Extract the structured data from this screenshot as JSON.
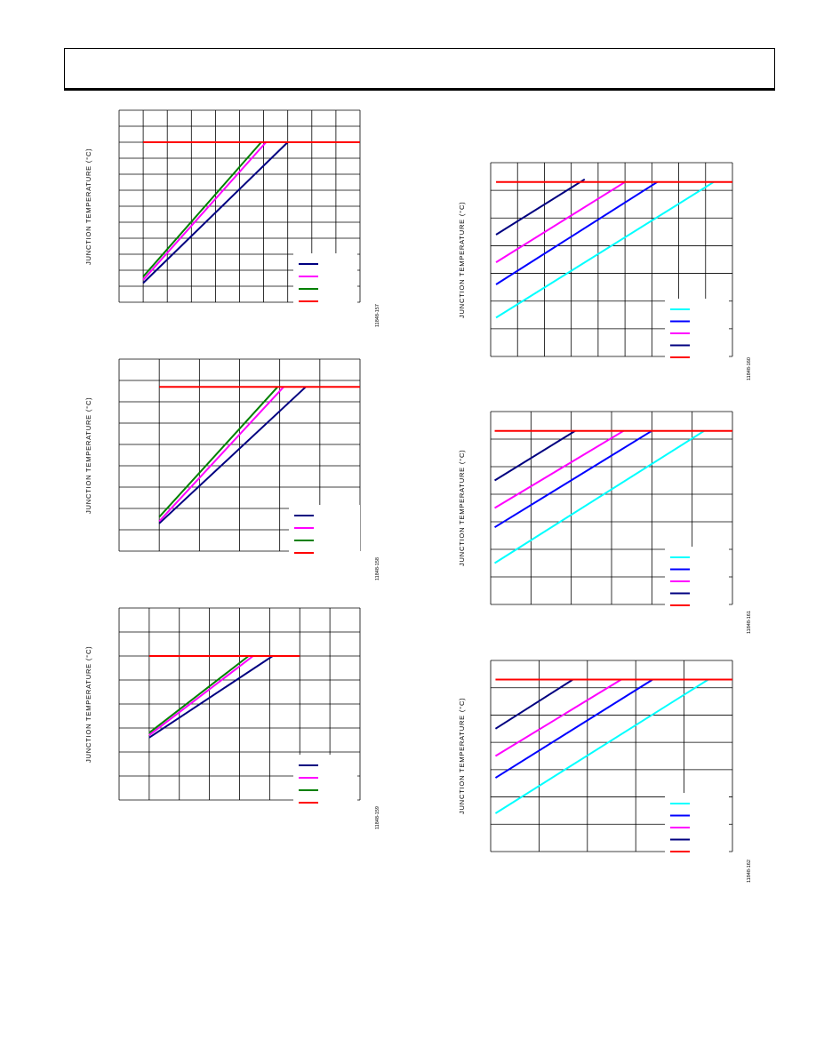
{
  "page": {
    "header": ""
  },
  "chart_data": [
    {
      "type": "line",
      "id": "fig1",
      "figure_id": "11848-157",
      "ylabel": "JUNCTION TEMPERATURE (°C)",
      "xlim": [
        0,
        10
      ],
      "ylim": [
        0,
        12
      ],
      "xgrid": 10,
      "ygrid": 12,
      "series": [
        {
          "color": "#000080",
          "x": [
            1,
            7.0
          ],
          "y": [
            1.2,
            10.0
          ]
        },
        {
          "color": "#ff00ff",
          "x": [
            1,
            6.1
          ],
          "y": [
            1.4,
            10.0
          ]
        },
        {
          "color": "#008000",
          "x": [
            1,
            5.9
          ],
          "y": [
            1.6,
            10.0
          ]
        },
        {
          "color": "#ff0000",
          "x": [
            1,
            10
          ],
          "y": [
            10.0,
            10.0
          ]
        }
      ],
      "legend_colors": [
        "#000080",
        "#ff00ff",
        "#008000",
        "#ff0000"
      ]
    },
    {
      "type": "line",
      "id": "fig2",
      "figure_id": "11848-158",
      "ylabel": "JUNCTION TEMPERATURE (°C)",
      "xlim": [
        0,
        6
      ],
      "ylim": [
        0,
        9
      ],
      "xgrid": 6,
      "ygrid": 9,
      "series": [
        {
          "color": "#000080",
          "x": [
            1,
            4.65
          ],
          "y": [
            1.3,
            7.7
          ]
        },
        {
          "color": "#ff00ff",
          "x": [
            1,
            4.1
          ],
          "y": [
            1.4,
            7.7
          ]
        },
        {
          "color": "#008000",
          "x": [
            1,
            3.95
          ],
          "y": [
            1.6,
            7.7
          ]
        },
        {
          "color": "#ff0000",
          "x": [
            1,
            6
          ],
          "y": [
            7.7,
            7.7
          ]
        }
      ],
      "legend_colors": [
        "#000080",
        "#ff00ff",
        "#008000",
        "#ff0000"
      ]
    },
    {
      "type": "line",
      "id": "fig3",
      "figure_id": "11848-159",
      "ylabel": "JUNCTION TEMPERATURE (°C)",
      "xlim": [
        0,
        8
      ],
      "ylim": [
        0,
        8
      ],
      "xgrid": 8,
      "ygrid": 8,
      "series": [
        {
          "color": "#000080",
          "x": [
            1,
            5.1
          ],
          "y": [
            2.6,
            6.0
          ]
        },
        {
          "color": "#ff00ff",
          "x": [
            1,
            4.45
          ],
          "y": [
            2.7,
            6.0
          ]
        },
        {
          "color": "#008000",
          "x": [
            1,
            4.3
          ],
          "y": [
            2.8,
            6.0
          ]
        },
        {
          "color": "#ff0000",
          "x": [
            1,
            6.0
          ],
          "y": [
            6.0,
            6.0
          ]
        }
      ],
      "legend_colors": [
        "#000080",
        "#ff00ff",
        "#008000",
        "#ff0000"
      ]
    },
    {
      "type": "line",
      "id": "fig4",
      "figure_id": "11848-160",
      "ylabel": "JUNCTION TEMPERATURE (°C)",
      "xlim": [
        0,
        9
      ],
      "ylim": [
        0,
        7
      ],
      "xgrid": 9,
      "ygrid": 7,
      "series": [
        {
          "color": "#00ffff",
          "x": [
            0.2,
            8.3
          ],
          "y": [
            1.4,
            6.3
          ]
        },
        {
          "color": "#0000ff",
          "x": [
            0.2,
            6.2
          ],
          "y": [
            2.6,
            6.3
          ]
        },
        {
          "color": "#ff00ff",
          "x": [
            0.2,
            5.0
          ],
          "y": [
            3.4,
            6.3
          ]
        },
        {
          "color": "#000080",
          "x": [
            0.2,
            3.5
          ],
          "y": [
            4.4,
            6.4
          ]
        },
        {
          "color": "#ff0000",
          "x": [
            0.2,
            9
          ],
          "y": [
            6.3,
            6.3
          ]
        }
      ],
      "legend_colors": [
        "#00ffff",
        "#0000ff",
        "#ff00ff",
        "#000080",
        "#ff0000"
      ]
    },
    {
      "type": "line",
      "id": "fig5",
      "figure_id": "11848-161",
      "ylabel": "JUNCTION TEMPERATURE (°C)",
      "xlim": [
        0,
        6
      ],
      "ylim": [
        0,
        7
      ],
      "xgrid": 6,
      "ygrid": 7,
      "series": [
        {
          "color": "#00ffff",
          "x": [
            0.1,
            5.3
          ],
          "y": [
            1.5,
            6.3
          ]
        },
        {
          "color": "#0000ff",
          "x": [
            0.1,
            4.0
          ],
          "y": [
            2.8,
            6.3
          ]
        },
        {
          "color": "#ff00ff",
          "x": [
            0.1,
            3.3
          ],
          "y": [
            3.5,
            6.3
          ]
        },
        {
          "color": "#000080",
          "x": [
            0.1,
            2.1
          ],
          "y": [
            4.5,
            6.3
          ]
        },
        {
          "color": "#ff0000",
          "x": [
            0.1,
            6
          ],
          "y": [
            6.3,
            6.3
          ]
        }
      ],
      "legend_colors": [
        "#00ffff",
        "#0000ff",
        "#ff00ff",
        "#000080",
        "#ff0000"
      ]
    },
    {
      "type": "line",
      "id": "fig6",
      "figure_id": "11848-162",
      "ylabel": "JUNCTION TEMPERATURE (°C)",
      "xlim": [
        0,
        5
      ],
      "ylim": [
        0,
        7
      ],
      "xgrid": 5,
      "ygrid": 7,
      "series": [
        {
          "color": "#00ffff",
          "x": [
            0.1,
            4.5
          ],
          "y": [
            1.4,
            6.3
          ]
        },
        {
          "color": "#0000ff",
          "x": [
            0.1,
            3.35
          ],
          "y": [
            2.7,
            6.3
          ]
        },
        {
          "color": "#ff00ff",
          "x": [
            0.1,
            2.7
          ],
          "y": [
            3.5,
            6.3
          ]
        },
        {
          "color": "#000080",
          "x": [
            0.1,
            1.7
          ],
          "y": [
            4.5,
            6.3
          ]
        },
        {
          "color": "#ff0000",
          "x": [
            0.1,
            5
          ],
          "y": [
            6.3,
            6.3
          ]
        }
      ],
      "legend_colors": [
        "#00ffff",
        "#0000ff",
        "#ff00ff",
        "#000080",
        "#ff0000"
      ]
    }
  ]
}
